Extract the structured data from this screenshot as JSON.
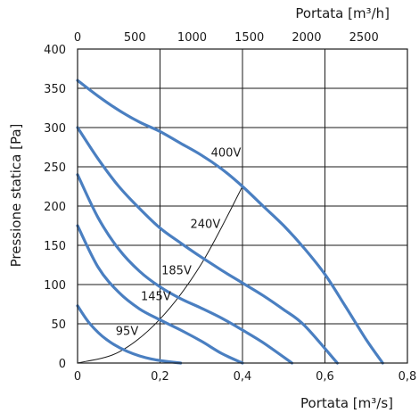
{
  "chart_data": {
    "type": "line",
    "xlabel": "Portata [m³/s]",
    "x2label": "Portata [m³/h]",
    "ylabel": "Pressione statica [Pa]",
    "xlim": [
      0,
      0.8
    ],
    "x2lim": [
      0,
      2880
    ],
    "ylim": [
      0,
      400
    ],
    "xticks": [
      "0",
      "0,2",
      "0,4",
      "0,6",
      "0,8"
    ],
    "xtick_values": [
      0,
      0.2,
      0.4,
      0.6,
      0.8
    ],
    "x2ticks": [
      "0",
      "500",
      "1000",
      "1500",
      "2000",
      "2500"
    ],
    "x2tick_values": [
      0,
      500,
      1000,
      1500,
      2000,
      2500
    ],
    "yticks": [
      "0",
      "50",
      "100",
      "150",
      "200",
      "250",
      "300",
      "350",
      "400"
    ],
    "ytick_values": [
      0,
      50,
      100,
      150,
      200,
      250,
      300,
      350,
      400
    ],
    "grid": true,
    "series": [
      {
        "name": "95V",
        "x": [
          0,
          0.03,
          0.07,
          0.12,
          0.18,
          0.25
        ],
        "y": [
          73,
          50,
          30,
          15,
          5,
          0
        ]
      },
      {
        "name": "145V",
        "x": [
          0,
          0.05,
          0.1,
          0.15,
          0.2,
          0.25,
          0.3,
          0.35,
          0.4
        ],
        "y": [
          175,
          122,
          90,
          69,
          55,
          42,
          28,
          12,
          0
        ]
      },
      {
        "name": "185V",
        "x": [
          0,
          0.05,
          0.1,
          0.15,
          0.2,
          0.25,
          0.3,
          0.35,
          0.4,
          0.45,
          0.52
        ],
        "y": [
          240,
          185,
          145,
          117,
          97,
          82,
          70,
          57,
          42,
          26,
          0
        ]
      },
      {
        "name": "240V",
        "x": [
          0,
          0.05,
          0.1,
          0.15,
          0.2,
          0.25,
          0.3,
          0.35,
          0.4,
          0.45,
          0.5,
          0.55,
          0.63
        ],
        "y": [
          300,
          260,
          225,
          197,
          172,
          153,
          135,
          118,
          102,
          86,
          68,
          48,
          0
        ]
      },
      {
        "name": "400V",
        "x": [
          0,
          0.05,
          0.1,
          0.15,
          0.2,
          0.25,
          0.3,
          0.35,
          0.4,
          0.45,
          0.5,
          0.55,
          0.6,
          0.65,
          0.7,
          0.74
        ],
        "y": [
          360,
          340,
          322,
          307,
          295,
          280,
          265,
          247,
          225,
          200,
          175,
          146,
          113,
          72,
          30,
          0
        ]
      }
    ],
    "system_curve": {
      "x": [
        0,
        0.1,
        0.2,
        0.3,
        0.4
      ],
      "y": [
        0,
        14,
        56,
        126,
        225
      ]
    },
    "annotations": [
      {
        "text": "95V",
        "x": 0.12,
        "y": 36
      },
      {
        "text": "145V",
        "x": 0.19,
        "y": 80
      },
      {
        "text": "185V",
        "x": 0.24,
        "y": 113
      },
      {
        "text": "240V",
        "x": 0.31,
        "y": 172
      },
      {
        "text": "400V",
        "x": 0.36,
        "y": 263
      }
    ]
  }
}
